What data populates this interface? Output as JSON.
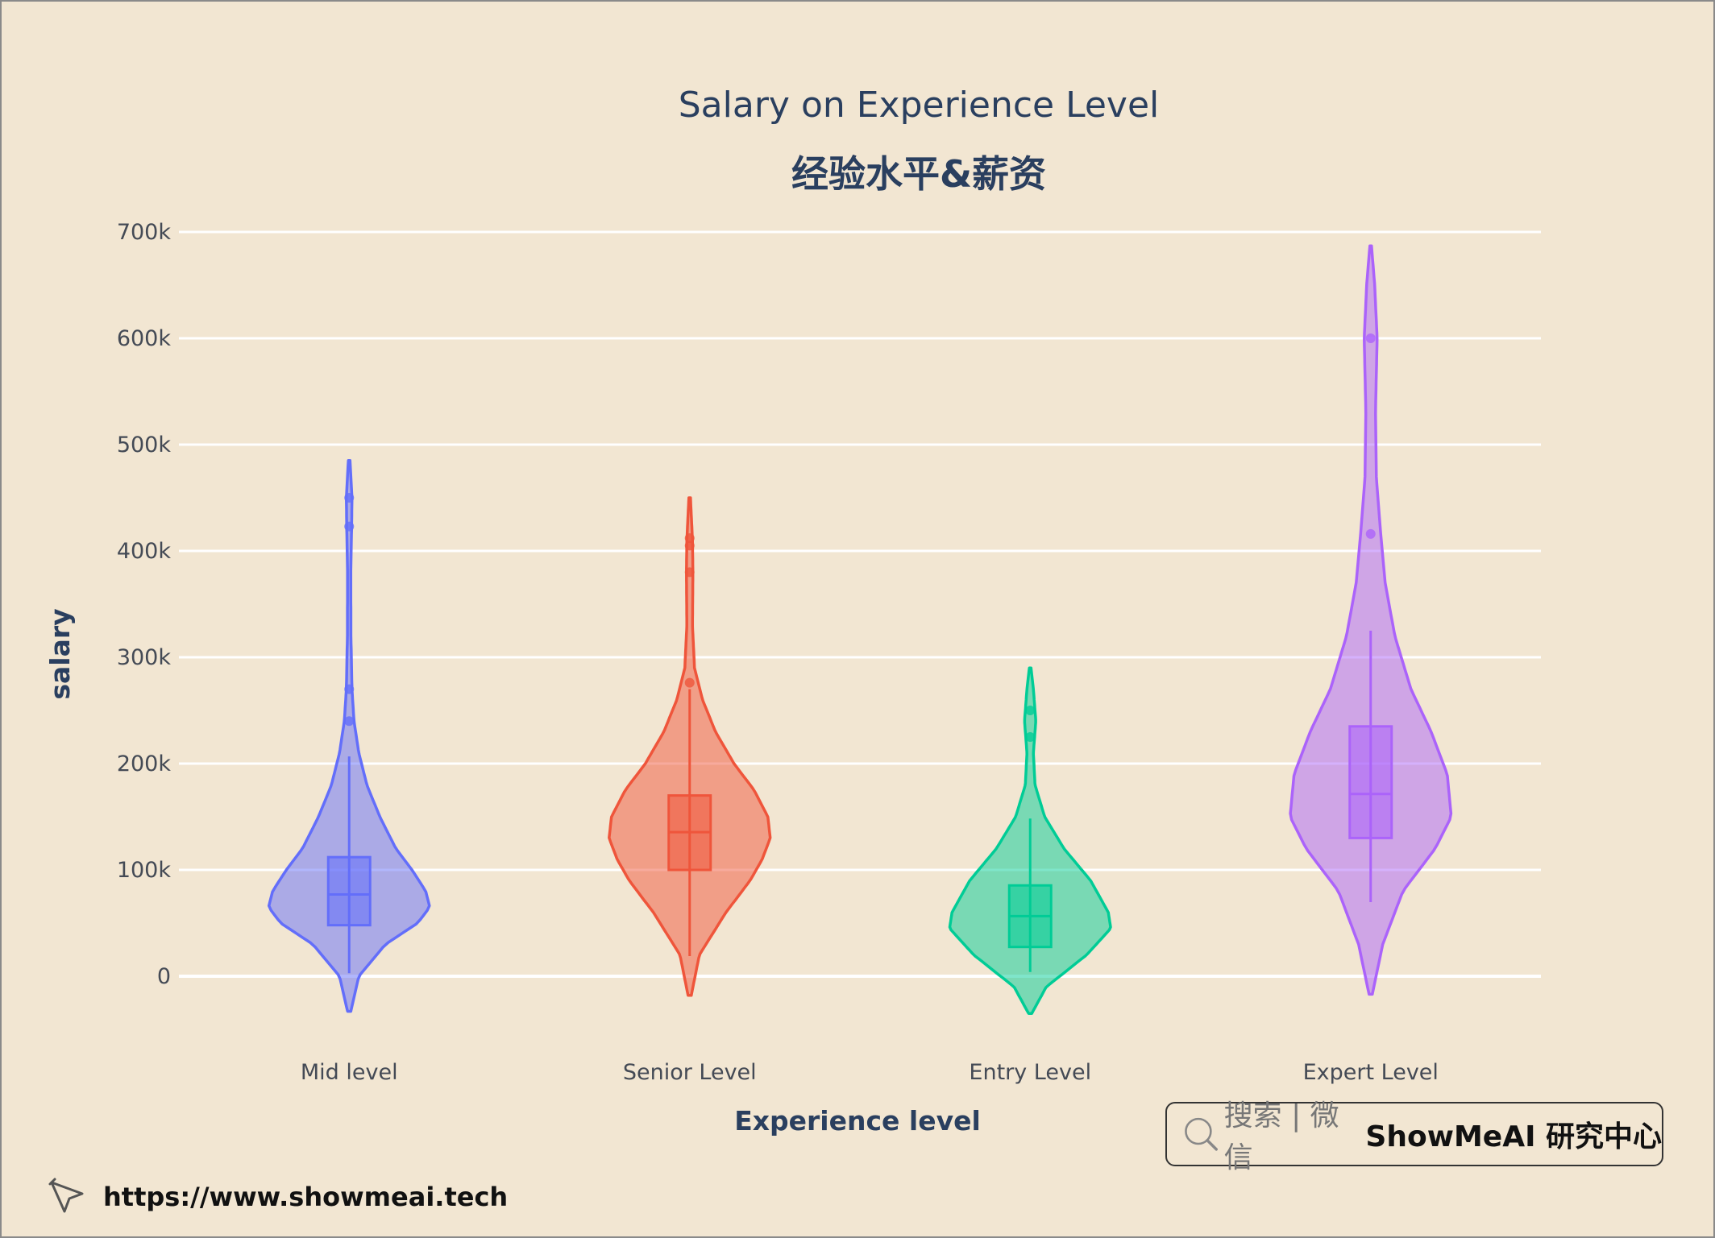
{
  "chart_data": {
    "type": "violin",
    "title": "Salary on Experience Level",
    "subtitle": "经验水平&薪资",
    "xlabel": "Experience level",
    "ylabel": "salary",
    "yticks": [
      0,
      100000,
      200000,
      300000,
      400000,
      500000,
      600000,
      700000
    ],
    "ytick_labels": [
      "0",
      "100k",
      "200k",
      "300k",
      "400k",
      "500k",
      "600k",
      "700k"
    ],
    "grid": true,
    "legend": "none",
    "categories": [
      "Mid level",
      "Senior Level",
      "Entry Level",
      "Expert Level"
    ],
    "series": [
      {
        "category": "Mid level",
        "color": "#636efa",
        "min": 2859,
        "q1": 48000,
        "median": 76940,
        "q3": 112000,
        "max": 206699,
        "outliers": [
          240000,
          270000,
          423000,
          450000
        ],
        "violin_range": [
          -33000,
          485000
        ],
        "profile": [
          [
            -33000,
            0.02
          ],
          [
            0,
            0.12
          ],
          [
            30000,
            0.45
          ],
          [
            50000,
            0.85
          ],
          [
            65000,
            1.0
          ],
          [
            80000,
            0.95
          ],
          [
            100000,
            0.78
          ],
          [
            120000,
            0.58
          ],
          [
            150000,
            0.38
          ],
          [
            180000,
            0.22
          ],
          [
            210000,
            0.12
          ],
          [
            240000,
            0.06
          ],
          [
            270000,
            0.035
          ],
          [
            320000,
            0.022
          ],
          [
            380000,
            0.02
          ],
          [
            420000,
            0.03
          ],
          [
            450000,
            0.035
          ],
          [
            485000,
            0.01
          ]
        ]
      },
      {
        "category": "Senior Level",
        "color": "#ef553b",
        "min": 18907,
        "q1": 100000,
        "median": 135500,
        "q3": 170000,
        "max": 270000,
        "outliers": [
          276000,
          380000,
          405000,
          412000
        ],
        "violin_range": [
          -18000,
          450000
        ],
        "profile": [
          [
            -18000,
            0.02
          ],
          [
            20000,
            0.12
          ],
          [
            60000,
            0.45
          ],
          [
            90000,
            0.75
          ],
          [
            110000,
            0.9
          ],
          [
            130000,
            1.0
          ],
          [
            150000,
            0.97
          ],
          [
            175000,
            0.8
          ],
          [
            200000,
            0.55
          ],
          [
            230000,
            0.32
          ],
          [
            260000,
            0.16
          ],
          [
            290000,
            0.06
          ],
          [
            330000,
            0.035
          ],
          [
            380000,
            0.04
          ],
          [
            410000,
            0.035
          ],
          [
            450000,
            0.01
          ]
        ]
      },
      {
        "category": "Entry Level",
        "color": "#00cc96",
        "min": 4000,
        "q1": 27505,
        "median": 56500,
        "q3": 85425,
        "max": 148261,
        "outliers": [
          225000,
          250000
        ],
        "violin_range": [
          -35000,
          290000
        ],
        "profile": [
          [
            -35000,
            0.02
          ],
          [
            -10000,
            0.2
          ],
          [
            20000,
            0.7
          ],
          [
            45000,
            1.0
          ],
          [
            60000,
            0.97
          ],
          [
            90000,
            0.75
          ],
          [
            120000,
            0.42
          ],
          [
            150000,
            0.18
          ],
          [
            180000,
            0.06
          ],
          [
            210000,
            0.04
          ],
          [
            240000,
            0.07
          ],
          [
            270000,
            0.04
          ],
          [
            290000,
            0.01
          ]
        ]
      },
      {
        "category": "Expert Level",
        "color": "#ab63fa",
        "min": 69741,
        "q1": 130000,
        "median": 171438,
        "q3": 235000,
        "max": 325000,
        "outliers": [
          416000,
          600000
        ],
        "violin_range": [
          -17000,
          687000
        ],
        "profile": [
          [
            -17000,
            0.02
          ],
          [
            30000,
            0.15
          ],
          [
            80000,
            0.4
          ],
          [
            120000,
            0.8
          ],
          [
            150000,
            1.0
          ],
          [
            190000,
            0.95
          ],
          [
            230000,
            0.75
          ],
          [
            270000,
            0.5
          ],
          [
            320000,
            0.3
          ],
          [
            370000,
            0.18
          ],
          [
            420000,
            0.12
          ],
          [
            470000,
            0.07
          ],
          [
            530000,
            0.06
          ],
          [
            600000,
            0.08
          ],
          [
            650000,
            0.05
          ],
          [
            687000,
            0.01
          ]
        ]
      }
    ]
  },
  "watermark": {
    "search_label": "搜索 | 微信",
    "brand": "ShowMeAI 研究中心",
    "url": "https://www.showmeai.tech"
  }
}
